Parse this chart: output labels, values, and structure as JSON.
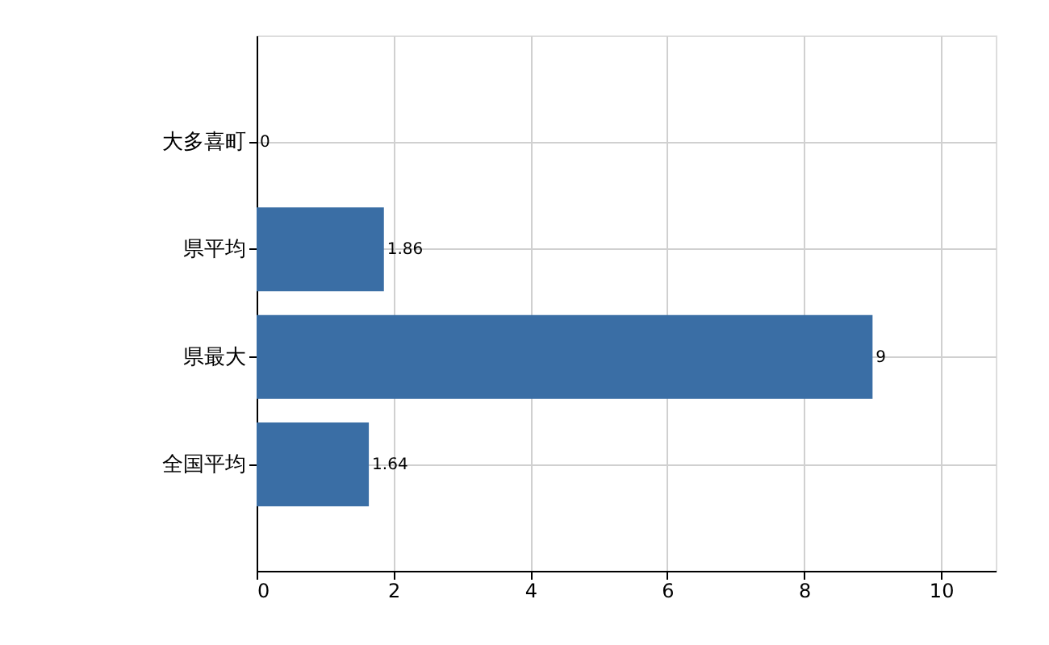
{
  "chart_data": {
    "type": "bar",
    "orientation": "horizontal",
    "categories": [
      "大多喜町",
      "県平均",
      "県最大",
      "全国平均"
    ],
    "values": [
      0,
      1.86,
      9,
      1.64
    ],
    "color": "#3a6ea5",
    "xlim": [
      0,
      10.8
    ],
    "xticks": [
      0,
      2,
      4,
      6,
      8,
      10
    ],
    "grid": true,
    "data_labels": true
  }
}
